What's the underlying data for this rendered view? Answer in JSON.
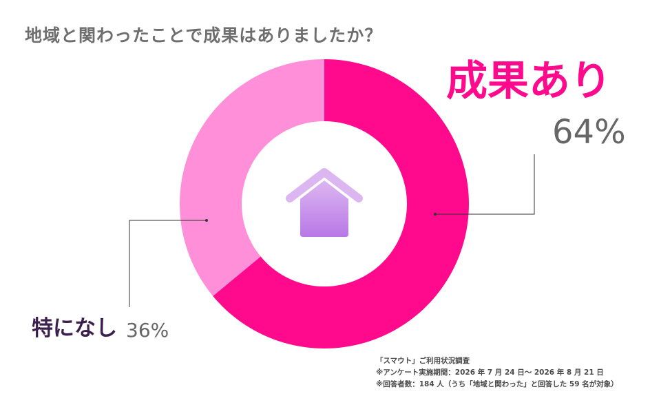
{
  "title": "地域と関わったことで成果はありましたか？",
  "chart_data": {
    "type": "pie",
    "style": "donut",
    "categories": [
      "成果あり",
      "特になし"
    ],
    "values": [
      64,
      36
    ],
    "colors": [
      "#ff0a8c",
      "#ff8fd8"
    ],
    "labels": {
      "yes": "成果あり",
      "no": "特になし"
    },
    "percent_labels": {
      "yes": "64%",
      "no": "36%"
    }
  },
  "center_icon": "house-icon",
  "notes": [
    "「スマウト」ご利用状況調査",
    "※アンケート実施期間：2026 年 7 月 24 日〜 2026 年 8 月 21 日",
    "※回答者数：184 人（うち「地域と関わった」と回答した 59 名が対象）"
  ]
}
